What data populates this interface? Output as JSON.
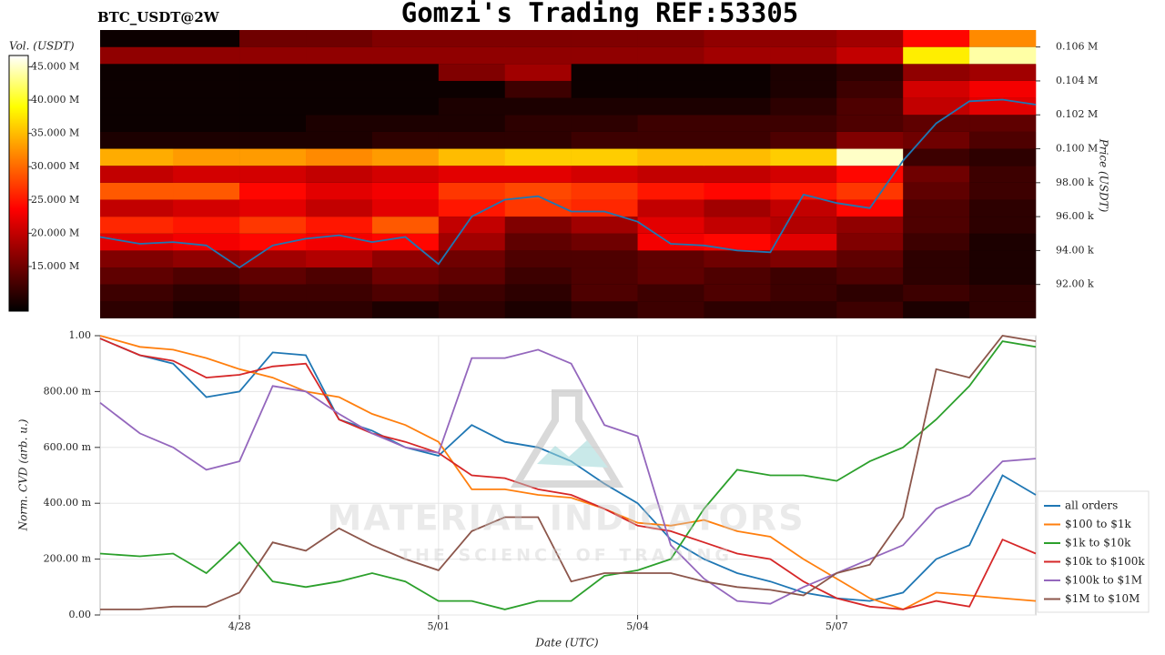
{
  "title": "Gomzi's Trading REF:53305",
  "watermark": {
    "title": "MATERIAL INDICATORS",
    "subtitle": "THE SCIENCE OF TRADING"
  },
  "chart_data": [
    {
      "type": "heatmap",
      "title": "BTC_USDT@2W",
      "ylabel": "Price (USDT)",
      "colorbar_label": "Vol. (USDT)",
      "colormap": "hot",
      "xlim": [
        -2.1,
        12
      ],
      "ylim": [
        90000,
        107000
      ],
      "yticks": [
        {
          "value": 92000,
          "label": "92.00 k"
        },
        {
          "value": 94000,
          "label": "94.00 k"
        },
        {
          "value": 96000,
          "label": "96.00 k"
        },
        {
          "value": 98000,
          "label": "98.00 k"
        },
        {
          "value": 100000,
          "label": "0.100 M"
        },
        {
          "value": 102000,
          "label": "0.102 M"
        },
        {
          "value": 104000,
          "label": "0.104 M"
        },
        {
          "value": 106000,
          "label": "0.106 M"
        }
      ],
      "clim": [
        8.3,
        46.7
      ],
      "cticks": [
        {
          "value": 15,
          "label": "15.000 M"
        },
        {
          "value": 20,
          "label": "20.000 M"
        },
        {
          "value": 25,
          "label": "25.000 M"
        },
        {
          "value": 30,
          "label": "30.000 M"
        },
        {
          "value": 35,
          "label": "35.000 M"
        },
        {
          "value": 40,
          "label": "40.000 M"
        },
        {
          "value": 45,
          "label": "45.000 M"
        }
      ],
      "x_bins": [
        -2.1,
        -1,
        0,
        1,
        2,
        3,
        4,
        5,
        6,
        7,
        8,
        9,
        10,
        11,
        12
      ],
      "y_bins": [
        90000,
        91000,
        92000,
        93000,
        94000,
        95000,
        96000,
        97000,
        98000,
        99000,
        100000,
        101000,
        102000,
        103000,
        104000,
        105000,
        106000,
        107000
      ],
      "z": [
        [
          11,
          10,
          11,
          11,
          10,
          11,
          10,
          11,
          12,
          11,
          11,
          12,
          10,
          11
        ],
        [
          12,
          11,
          12,
          12,
          13,
          12,
          11,
          13,
          12,
          13,
          12,
          11,
          12,
          11
        ],
        [
          14,
          13,
          14,
          13,
          15,
          14,
          12,
          13,
          14,
          13,
          12,
          13,
          11,
          10
        ],
        [
          16,
          17,
          18,
          19,
          17,
          15,
          13,
          13,
          14,
          15,
          16,
          14,
          11,
          10
        ],
        [
          22,
          23,
          24,
          23,
          24,
          18,
          14,
          15,
          23,
          24,
          22,
          16,
          12,
          10
        ],
        [
          26,
          25,
          27,
          25,
          29,
          20,
          16,
          18,
          22,
          20,
          19,
          17,
          13,
          11
        ],
        [
          20,
          21,
          22,
          20,
          22,
          25,
          27,
          26,
          20,
          18,
          20,
          24,
          13,
          11
        ],
        [
          29,
          29,
          24,
          22,
          23,
          27,
          28,
          27,
          25,
          24,
          25,
          27,
          14,
          12
        ],
        [
          20,
          21,
          21,
          20,
          21,
          22,
          22,
          21,
          20,
          20,
          21,
          24,
          15,
          12
        ],
        [
          34,
          33,
          33,
          32,
          33,
          35,
          36,
          36,
          35,
          35,
          36,
          45,
          12,
          11
        ],
        [
          10,
          10,
          10,
          10,
          11,
          11,
          11,
          12,
          12,
          12,
          13,
          16,
          15,
          13
        ],
        [
          9,
          9,
          9,
          10,
          10,
          10,
          11,
          11,
          12,
          12,
          12,
          13,
          14,
          14
        ],
        [
          9,
          9,
          9,
          9,
          9,
          10,
          10,
          10,
          10,
          10,
          11,
          13,
          20,
          22
        ],
        [
          9,
          9,
          9,
          9,
          9,
          9,
          12,
          9,
          9,
          9,
          10,
          12,
          21,
          23
        ],
        [
          9,
          9,
          9,
          9,
          9,
          16,
          18,
          9,
          9,
          9,
          10,
          11,
          17,
          18
        ],
        [
          17,
          17,
          17,
          17,
          17,
          17,
          17,
          17,
          17,
          18,
          18,
          20,
          38,
          44
        ],
        [
          9,
          9,
          15,
          15,
          16,
          16,
          16,
          16,
          16,
          17,
          17,
          18,
          24,
          32
        ]
      ],
      "price": {
        "color": "#1f77b4",
        "x": [
          -2.1,
          -1.5,
          -1,
          -0.5,
          0,
          0.5,
          1,
          1.5,
          2,
          2.5,
          3,
          3.5,
          4,
          4.5,
          5,
          5.5,
          6,
          6.5,
          7,
          7.5,
          8,
          8.5,
          9,
          9.5,
          10,
          10.5,
          11,
          11.5,
          12
        ],
        "values": [
          94800,
          94400,
          94500,
          94300,
          93000,
          94300,
          94700,
          94900,
          94500,
          94800,
          93200,
          96000,
          97000,
          97200,
          96300,
          96300,
          95700,
          94400,
          94300,
          94000,
          93900,
          97300,
          96800,
          96500,
          99300,
          101500,
          102800,
          102900,
          102600
        ]
      }
    },
    {
      "type": "line",
      "xlabel": "Date (UTC)",
      "ylabel": "Norm. CVD (arb. u.)",
      "grid": true,
      "legend": "right",
      "xlim": [
        -2.1,
        12
      ],
      "ylim": [
        0,
        1
      ],
      "xticks": [
        {
          "value": 0,
          "label": "4/28"
        },
        {
          "value": 3,
          "label": "5/01"
        },
        {
          "value": 6,
          "label": "5/04"
        },
        {
          "value": 9,
          "label": "5/07"
        }
      ],
      "yticks": [
        {
          "value": 0,
          "label": "0.00"
        },
        {
          "value": 0.2,
          "label": "200.00 m"
        },
        {
          "value": 0.4,
          "label": "400.00 m"
        },
        {
          "value": 0.6,
          "label": "600.00 m"
        },
        {
          "value": 0.8,
          "label": "800.00 m"
        },
        {
          "value": 1,
          "label": "1.00"
        }
      ],
      "x": [
        -2.1,
        -1.5,
        -1,
        -0.5,
        0,
        0.5,
        1,
        1.5,
        2,
        2.5,
        3,
        3.5,
        4,
        4.5,
        5,
        5.5,
        6,
        6.5,
        7,
        7.5,
        8,
        8.5,
        9,
        9.5,
        10,
        10.5,
        11,
        11.5,
        12
      ],
      "series": [
        {
          "name": "all orders",
          "color": "#1f77b4",
          "values": [
            0.99,
            0.93,
            0.9,
            0.78,
            0.8,
            0.94,
            0.93,
            0.7,
            0.66,
            0.6,
            0.57,
            0.68,
            0.62,
            0.6,
            0.55,
            0.47,
            0.4,
            0.27,
            0.2,
            0.15,
            0.12,
            0.08,
            0.06,
            0.05,
            0.08,
            0.2,
            0.25,
            0.5,
            0.43
          ]
        },
        {
          "name": "$100 to $1k",
          "color": "#ff7f0e",
          "values": [
            1.0,
            0.96,
            0.95,
            0.92,
            0.88,
            0.85,
            0.8,
            0.78,
            0.72,
            0.68,
            0.62,
            0.45,
            0.45,
            0.43,
            0.42,
            0.38,
            0.33,
            0.32,
            0.34,
            0.3,
            0.28,
            0.2,
            0.13,
            0.06,
            0.02,
            0.08,
            0.07,
            0.06,
            0.05
          ]
        },
        {
          "name": "$1k to $10k",
          "color": "#2ca02c",
          "values": [
            0.22,
            0.21,
            0.22,
            0.15,
            0.26,
            0.12,
            0.1,
            0.12,
            0.15,
            0.12,
            0.05,
            0.05,
            0.02,
            0.05,
            0.05,
            0.14,
            0.16,
            0.2,
            0.38,
            0.52,
            0.5,
            0.5,
            0.48,
            0.55,
            0.6,
            0.7,
            0.82,
            0.98,
            0.96
          ]
        },
        {
          "name": "$10k to $100k",
          "color": "#d62728",
          "values": [
            0.99,
            0.93,
            0.91,
            0.85,
            0.86,
            0.89,
            0.9,
            0.7,
            0.65,
            0.62,
            0.58,
            0.5,
            0.49,
            0.45,
            0.43,
            0.38,
            0.32,
            0.3,
            0.26,
            0.22,
            0.2,
            0.12,
            0.06,
            0.03,
            0.02,
            0.05,
            0.03,
            0.27,
            0.22
          ]
        },
        {
          "name": "$100k to $1M",
          "color": "#9467bd",
          "values": [
            0.76,
            0.65,
            0.6,
            0.52,
            0.55,
            0.82,
            0.8,
            0.72,
            0.65,
            0.6,
            0.58,
            0.92,
            0.92,
            0.95,
            0.9,
            0.68,
            0.64,
            0.25,
            0.13,
            0.05,
            0.04,
            0.1,
            0.15,
            0.2,
            0.25,
            0.38,
            0.43,
            0.55,
            0.56
          ]
        },
        {
          "name": "$1M to $10M",
          "color": "#8c564b",
          "values": [
            0.02,
            0.02,
            0.03,
            0.03,
            0.08,
            0.26,
            0.23,
            0.31,
            0.25,
            0.2,
            0.16,
            0.3,
            0.35,
            0.35,
            0.12,
            0.15,
            0.15,
            0.15,
            0.12,
            0.1,
            0.09,
            0.07,
            0.15,
            0.18,
            0.35,
            0.88,
            0.85,
            1.0,
            0.98
          ]
        }
      ]
    }
  ]
}
